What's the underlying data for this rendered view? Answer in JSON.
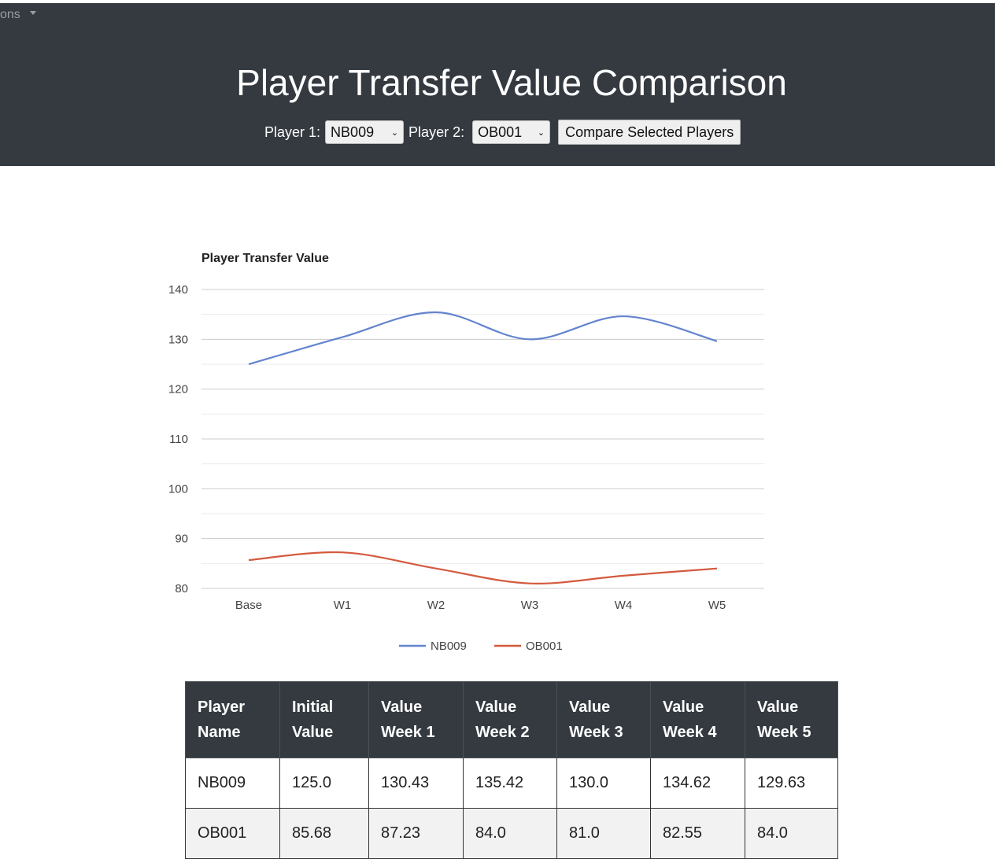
{
  "nav": {
    "fragment": "ons"
  },
  "page": {
    "title": "Player Transfer Value Comparison"
  },
  "controls": {
    "player1_label": "Player 1:",
    "player1_value": "NB009",
    "player2_label": "Player 2:",
    "player2_value": "OB001",
    "compare_label": "Compare Selected Players"
  },
  "chart_data": {
    "type": "line",
    "title": "Player Transfer Value",
    "categories": [
      "Base",
      "W1",
      "W2",
      "W3",
      "W4",
      "W5"
    ],
    "yticks": [
      "140",
      "130",
      "120",
      "110",
      "100",
      "90",
      "80"
    ],
    "ylim": [
      80,
      140
    ],
    "grid": true,
    "legend": "bottom",
    "series": [
      {
        "name": "NB009",
        "color": "#6384cf",
        "values": [
          125.0,
          130.43,
          135.42,
          130.0,
          134.62,
          129.63
        ]
      },
      {
        "name": "OB001",
        "color": "#d35a3e",
        "values": [
          85.68,
          87.23,
          84.0,
          81.0,
          82.55,
          84.0
        ]
      }
    ]
  },
  "table": {
    "headers": [
      [
        "Player",
        "Name"
      ],
      [
        "Initial",
        "Value"
      ],
      [
        "Value",
        "Week 1"
      ],
      [
        "Value",
        "Week 2"
      ],
      [
        "Value",
        "Week 3"
      ],
      [
        "Value",
        "Week 4"
      ],
      [
        "Value",
        "Week 5"
      ]
    ],
    "rows": [
      [
        "NB009",
        "125.0",
        "130.43",
        "135.42",
        "130.0",
        "134.62",
        "129.63"
      ],
      [
        "OB001",
        "85.68",
        "87.23",
        "84.0",
        "81.0",
        "82.55",
        "84.0"
      ]
    ]
  }
}
